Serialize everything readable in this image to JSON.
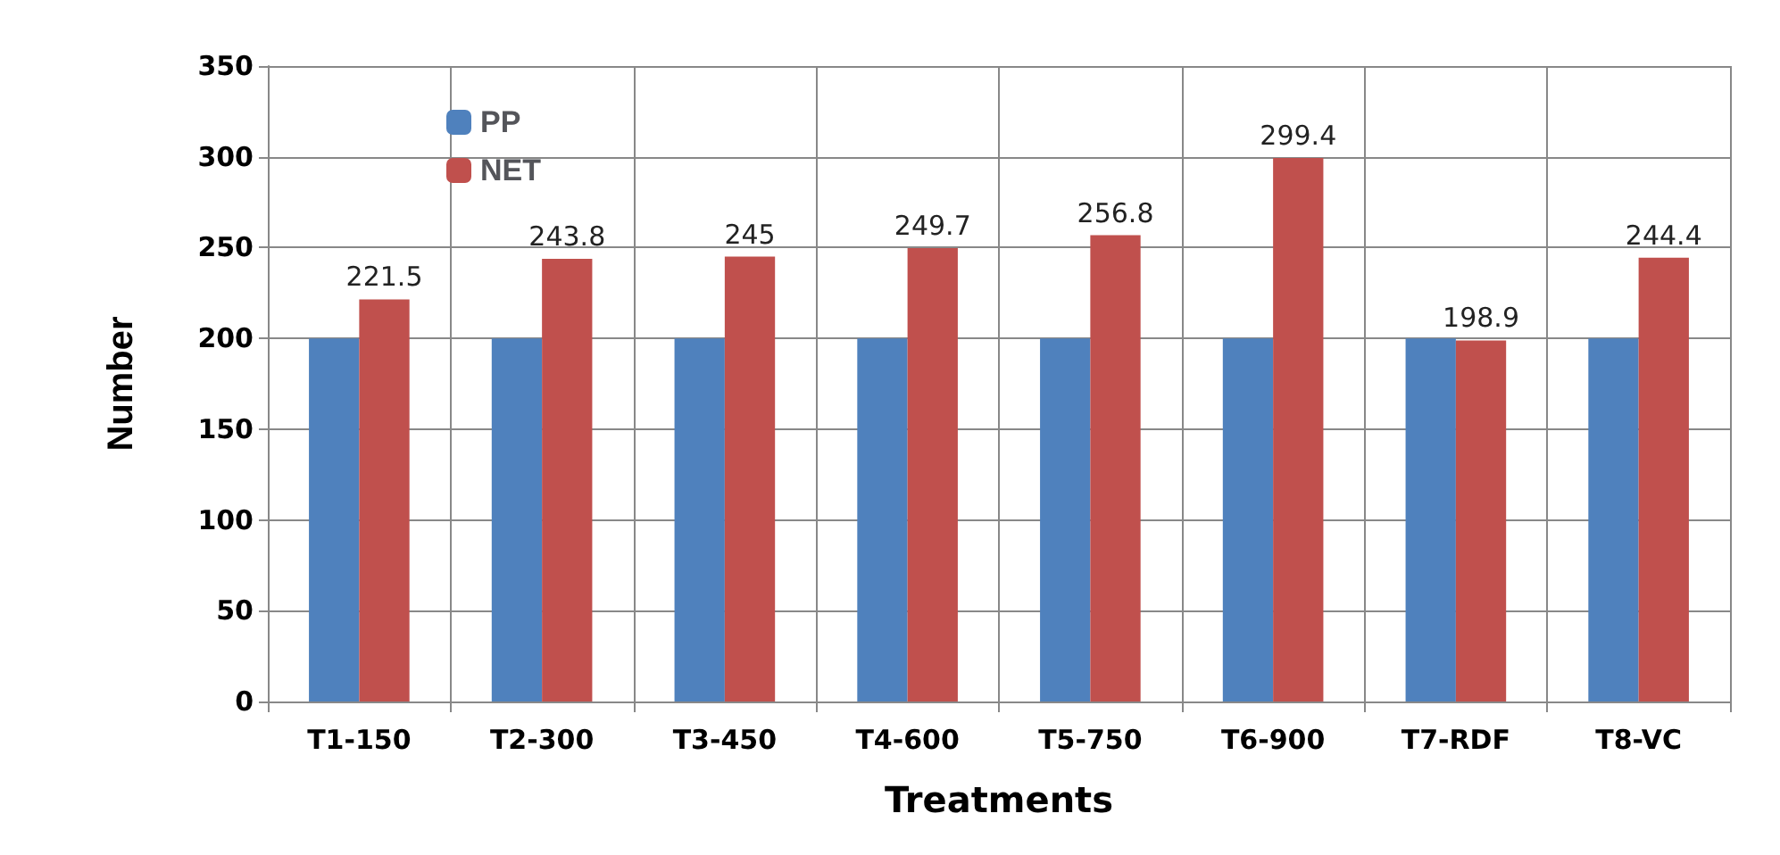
{
  "chart_data": {
    "type": "bar",
    "xlabel": "Treatments",
    "ylabel": "Number",
    "categories": [
      "T1-150",
      "T2-300",
      "T3-450",
      "T4-600",
      "T5-750",
      "T6-900",
      "T7-RDF",
      "T8-VC"
    ],
    "series": [
      {
        "name": "PP",
        "color": "#4f81bd",
        "values": [
          200,
          200,
          200,
          200,
          200,
          200,
          200,
          200
        ]
      },
      {
        "name": "NET",
        "color": "#c0504d",
        "values": [
          221.5,
          243.8,
          245,
          249.7,
          256.8,
          299.4,
          198.9,
          244.4
        ],
        "value_labels": [
          "221.5",
          "243.8",
          "245",
          "249.7",
          "256.8",
          "299.4",
          "198.9",
          "244.4"
        ]
      }
    ],
    "ylim": [
      0,
      350
    ],
    "yticks": [
      0,
      50,
      100,
      150,
      200,
      250,
      300,
      350
    ],
    "grid": true,
    "legend": "top left"
  }
}
